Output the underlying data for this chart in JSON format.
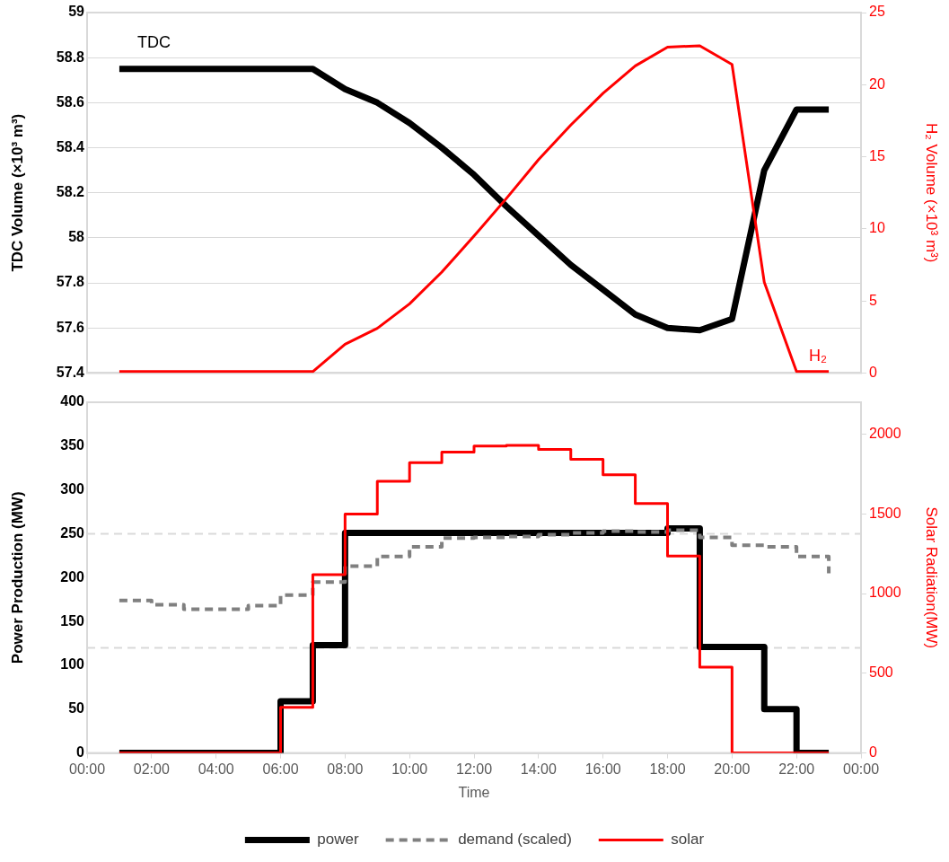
{
  "chart_data": [
    {
      "type": "line",
      "x": [
        1,
        2,
        3,
        4,
        5,
        6,
        7,
        8,
        9,
        10,
        11,
        12,
        13,
        14,
        15,
        16,
        17,
        18,
        19,
        20,
        21,
        22,
        23
      ],
      "xlim": [
        0,
        24
      ],
      "ylim": [
        57.4,
        59
      ],
      "yticks": [
        {
          "value": 57.4,
          "label": "57.4"
        },
        {
          "value": 57.6,
          "label": "57.6"
        },
        {
          "value": 57.8,
          "label": "57.8"
        },
        {
          "value": 58,
          "label": "58"
        },
        {
          "value": 58.2,
          "label": "58.2"
        },
        {
          "value": 58.4,
          "label": "58.4"
        },
        {
          "value": 58.6,
          "label": "58.6"
        },
        {
          "value": 58.8,
          "label": "58.8"
        },
        {
          "value": 59,
          "label": "59"
        }
      ],
      "y2lim": [
        0,
        25
      ],
      "y2ticks": [
        0,
        5,
        10,
        15,
        20,
        25
      ],
      "ylabel": "TDC Volume (×10³ m³)",
      "y2label": "H₂ Volume (×10³ m³)",
      "grid": "y",
      "tick_labels": "y",
      "legend": false,
      "marker": "none",
      "series": [
        {
          "name": "TDC",
          "color": "#000000",
          "values": [
            58.75,
            58.75,
            58.75,
            58.75,
            58.75,
            58.75,
            58.75,
            58.66,
            58.6,
            58.51,
            58.4,
            58.28,
            58.14,
            58.01,
            57.88,
            57.77,
            57.66,
            57.6,
            57.59,
            57.64,
            58.3,
            58.57,
            58.57
          ]
        },
        {
          "name": "H₂",
          "color": "#ff0000",
          "axis": "y2",
          "values": [
            0.1,
            0.1,
            0.1,
            0.1,
            0.1,
            0.1,
            0.1,
            2,
            3.1,
            4.8,
            7,
            9.5,
            12.1,
            14.8,
            17.2,
            19.4,
            21.3,
            22.6,
            22.7,
            21.4,
            6.3,
            0.1,
            0.1
          ]
        }
      ]
    },
    {
      "type": "step",
      "x": [
        1,
        2,
        3,
        4,
        5,
        6,
        7,
        8,
        9,
        10,
        11,
        12,
        13,
        14,
        15,
        16,
        17,
        18,
        19,
        20,
        21,
        22,
        23
      ],
      "xlim": [
        0,
        24
      ],
      "xticks": [
        {
          "value": 0,
          "label": "00:00"
        },
        {
          "value": 2,
          "label": "02:00"
        },
        {
          "value": 4,
          "label": "04:00"
        },
        {
          "value": 6,
          "label": "06:00"
        },
        {
          "value": 8,
          "label": "08:00"
        },
        {
          "value": 10,
          "label": "10:00"
        },
        {
          "value": 12,
          "label": "12:00"
        },
        {
          "value": 14,
          "label": "14:00"
        },
        {
          "value": 16,
          "label": "16:00"
        },
        {
          "value": 18,
          "label": "18:00"
        },
        {
          "value": 20,
          "label": "20:00"
        },
        {
          "value": 22,
          "label": "22:00"
        },
        {
          "value": 24,
          "label": "00:00"
        }
      ],
      "ylim": [
        0,
        400
      ],
      "yticks": [
        0,
        50,
        100,
        150,
        200,
        250,
        300,
        350,
        400
      ],
      "y2lim": [
        0,
        2200
      ],
      "y2ticks": [
        0,
        500,
        1000,
        1500,
        2000
      ],
      "xlabel": "Time",
      "ylabel": "Power Production (MW)",
      "y2label": "Solar Radiation(MW)",
      "grid": false,
      "legend": "bottom",
      "marker": "none",
      "ref_lines": [
        {
          "axis": "y",
          "value": 250,
          "color": "#d9d9d9",
          "line_style": "dashed"
        },
        {
          "axis": "y",
          "value": 120,
          "color": "#d9d9d9",
          "line_style": "dashed"
        }
      ],
      "series": [
        {
          "name": "power",
          "color": "#000000",
          "values": [
            0,
            0,
            0,
            0,
            0,
            59,
            123,
            251,
            251,
            251,
            251,
            251,
            251,
            251,
            251,
            251,
            251,
            256,
            121,
            121,
            50,
            0,
            0
          ]
        },
        {
          "name": "demand (scaled)",
          "color": "#808080",
          "line_style": "dashed",
          "values": [
            174,
            169,
            164,
            164,
            168,
            180,
            195,
            213,
            224,
            235,
            245,
            246,
            247,
            249,
            251,
            253,
            252,
            254,
            246,
            237,
            235,
            224,
            205
          ]
        },
        {
          "name": "solar",
          "color": "#ff0000",
          "axis": "y2",
          "values": [
            0,
            0,
            0,
            0,
            0,
            286,
            1118,
            1499,
            1705,
            1821,
            1887,
            1925,
            1929,
            1904,
            1842,
            1745,
            1565,
            1235,
            539,
            0,
            0,
            0,
            0
          ]
        }
      ]
    }
  ]
}
